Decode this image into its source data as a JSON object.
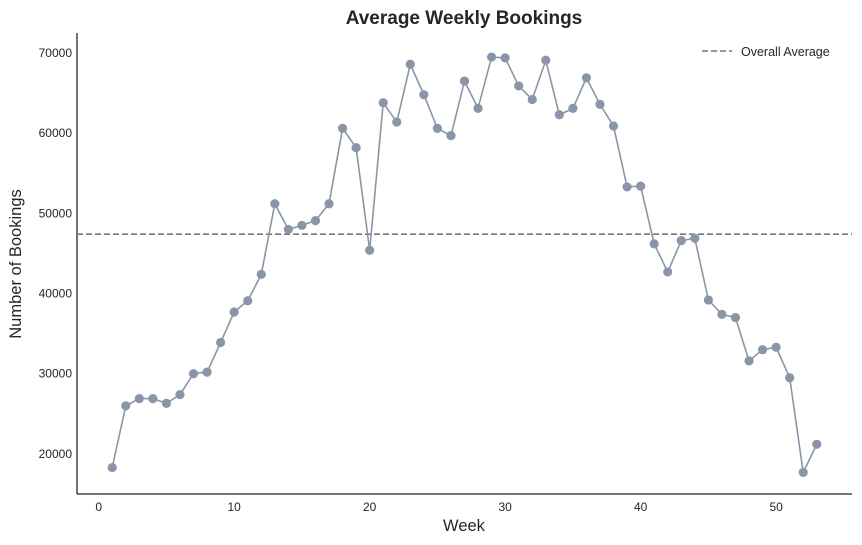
{
  "chart_data": {
    "type": "line",
    "title": "Average Weekly Bookings",
    "xlabel": "Week",
    "ylabel": "Number of Bookings",
    "xlim": [
      -1.6,
      55.6
    ],
    "ylim": [
      15000,
      72500
    ],
    "xticks": [
      0,
      10,
      20,
      30,
      40,
      50
    ],
    "yticks": [
      20000,
      30000,
      40000,
      50000,
      60000,
      70000
    ],
    "grid": false,
    "legend_position": "top-right",
    "series": [
      {
        "style": "line-with-markers",
        "color": "#8a96a8",
        "x": [
          1,
          2,
          3,
          4,
          5,
          6,
          7,
          8,
          9,
          10,
          11,
          12,
          13,
          14,
          15,
          16,
          17,
          18,
          19,
          20,
          21,
          22,
          23,
          24,
          25,
          26,
          27,
          28,
          29,
          30,
          31,
          32,
          33,
          34,
          35,
          36,
          37,
          38,
          39,
          40,
          41,
          42,
          43,
          44,
          45,
          46,
          47,
          48,
          49,
          50,
          51,
          52,
          53
        ],
        "y": [
          18300,
          26000,
          26900,
          26900,
          26300,
          27400,
          30000,
          30200,
          33900,
          37700,
          39100,
          42400,
          51200,
          48000,
          48500,
          49100,
          51200,
          60600,
          58200,
          45400,
          63800,
          61400,
          68600,
          64800,
          60600,
          59700,
          66500,
          63100,
          69500,
          69400,
          65900,
          64200,
          69100,
          62300,
          63100,
          66900,
          63600,
          60900,
          53300,
          53400,
          46200,
          42700,
          46600,
          46900,
          39200,
          37400,
          37000,
          31600,
          33000,
          33300,
          29500,
          17700,
          21200
        ]
      },
      {
        "name": "Overall Average",
        "style": "dashed-horizontal",
        "color": "#777777",
        "value": 47400
      }
    ]
  }
}
